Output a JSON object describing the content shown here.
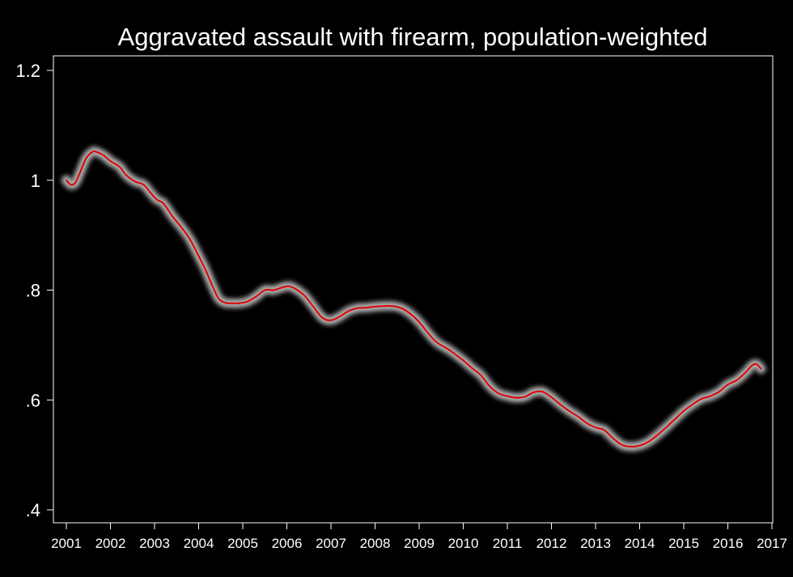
{
  "chart_data": {
    "type": "line",
    "title": "Aggravated assault with firearm, population-weighted",
    "xlabel": "",
    "ylabel": "",
    "xlim": [
      2001,
      2017
    ],
    "ylim": [
      0.4,
      1.2
    ],
    "grid": false,
    "legend": "none",
    "x_ticks": [
      "2001",
      "2002",
      "2003",
      "2004",
      "2005",
      "2006",
      "2007",
      "2008",
      "2009",
      "2010",
      "2011",
      "2012",
      "2013",
      "2014",
      "2015",
      "2016",
      "2017"
    ],
    "y_ticks": [
      ".4",
      ".6",
      ".8",
      "1",
      "1.2"
    ],
    "colors": {
      "background": "#000000",
      "axes": "#ffffff",
      "line": "#e00000",
      "band": "#bfbfbf"
    },
    "series": [
      {
        "x": [
          2001.0,
          2001.1,
          2001.2,
          2001.3,
          2001.45,
          2001.6,
          2001.7,
          2001.85,
          2002.0,
          2002.2,
          2002.35,
          2002.55,
          2002.75,
          2002.9,
          2003.05,
          2003.2,
          2003.4,
          2003.6,
          2003.8,
          2004.0,
          2004.15,
          2004.3,
          2004.45,
          2004.6,
          2004.75,
          2004.9,
          2005.1,
          2005.3,
          2005.5,
          2005.7,
          2005.9,
          2006.05,
          2006.2,
          2006.4,
          2006.6,
          2006.8,
          2007.0,
          2007.2,
          2007.4,
          2007.6,
          2007.8,
          2008.0,
          2008.2,
          2008.4,
          2008.6,
          2008.8,
          2009.0,
          2009.2,
          2009.4,
          2009.7,
          2010.0,
          2010.2,
          2010.4,
          2010.6,
          2010.8,
          2011.0,
          2011.2,
          2011.4,
          2011.6,
          2011.8,
          2012.0,
          2012.2,
          2012.4,
          2012.6,
          2012.8,
          2013.0,
          2013.2,
          2013.4,
          2013.6,
          2013.8,
          2014.0,
          2014.2,
          2014.4,
          2014.6,
          2014.8,
          2015.0,
          2015.2,
          2015.4,
          2015.6,
          2015.8,
          2016.0,
          2016.2,
          2016.4,
          2016.55,
          2016.65,
          2016.75
        ],
        "y": [
          1.0,
          0.992,
          0.995,
          1.012,
          1.04,
          1.052,
          1.051,
          1.045,
          1.035,
          1.025,
          1.01,
          0.998,
          0.992,
          0.978,
          0.965,
          0.958,
          0.935,
          0.915,
          0.893,
          0.862,
          0.838,
          0.81,
          0.785,
          0.777,
          0.776,
          0.776,
          0.779,
          0.788,
          0.8,
          0.8,
          0.805,
          0.807,
          0.802,
          0.79,
          0.77,
          0.75,
          0.745,
          0.752,
          0.762,
          0.767,
          0.768,
          0.77,
          0.771,
          0.771,
          0.767,
          0.757,
          0.742,
          0.722,
          0.705,
          0.69,
          0.672,
          0.658,
          0.645,
          0.625,
          0.612,
          0.607,
          0.604,
          0.606,
          0.614,
          0.615,
          0.605,
          0.592,
          0.58,
          0.57,
          0.558,
          0.55,
          0.545,
          0.53,
          0.518,
          0.515,
          0.517,
          0.524,
          0.536,
          0.55,
          0.565,
          0.58,
          0.592,
          0.602,
          0.607,
          0.615,
          0.628,
          0.636,
          0.65,
          0.663,
          0.665,
          0.657
        ]
      }
    ]
  }
}
